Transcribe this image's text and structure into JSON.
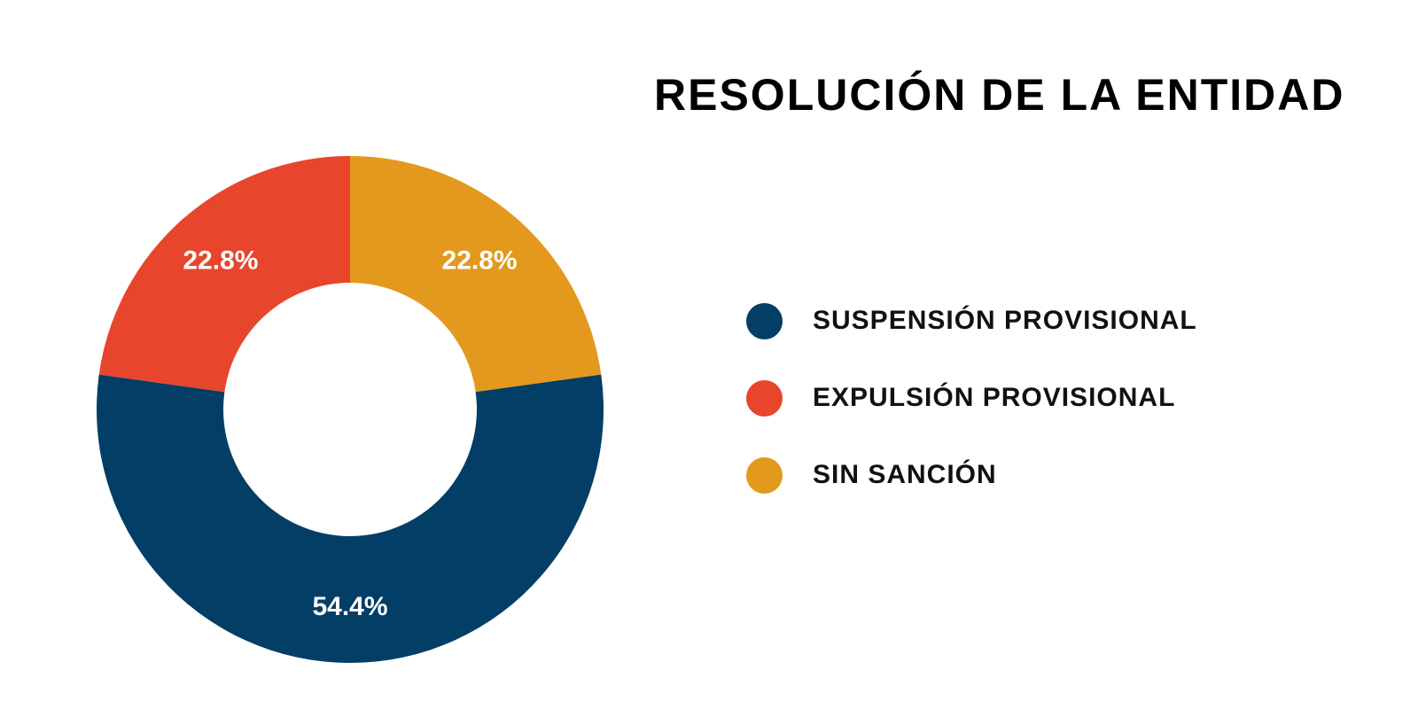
{
  "chart_data": {
    "type": "pie",
    "title": "RESOLUCIÓN DE LA ENTIDAD",
    "categories": [
      "SUSPENSIÓN PROVISIONAL",
      "EXPULSIÓN PROVISIONAL",
      "SIN SANCIÓN"
    ],
    "values": [
      54.4,
      22.8,
      22.8
    ],
    "value_labels": [
      "54.4%",
      "22.8%",
      "22.8%"
    ],
    "colors": [
      "#023e65",
      "#e8452d",
      "#e3991d"
    ],
    "label_color": "#ffffff",
    "donut": true,
    "legend_position": "right"
  }
}
